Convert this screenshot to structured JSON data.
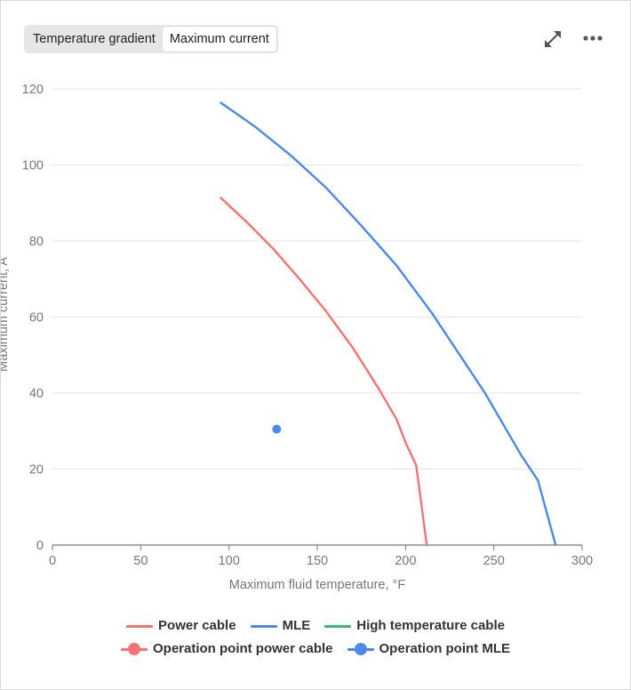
{
  "tabs": [
    {
      "label": "Temperature gradient",
      "active": false
    },
    {
      "label": "Maximum current",
      "active": true
    }
  ],
  "icons": {
    "expand": "expand-arrows-icon",
    "more": "more-dots-icon"
  },
  "chart_data": {
    "type": "line",
    "title": "",
    "xlabel": "Maximum fluid temperature, °F",
    "ylabel": "Maximum current, A",
    "xlim": [
      0,
      300
    ],
    "ylim": [
      0,
      120
    ],
    "xticks": [
      0,
      50,
      100,
      150,
      200,
      250,
      300
    ],
    "yticks": [
      0,
      20,
      40,
      60,
      80,
      100,
      120
    ],
    "grid": "horizontal",
    "legend_position": "bottom",
    "series": [
      {
        "name": "Power cable",
        "kind": "line",
        "color": "#f77272",
        "x": [
          95,
          110,
          125,
          140,
          155,
          170,
          185,
          195,
          200,
          206,
          212
        ],
        "y": [
          91.5,
          85,
          78,
          70,
          61.5,
          52,
          41,
          33,
          27,
          21,
          0
        ]
      },
      {
        "name": "MLE",
        "kind": "line",
        "color": "#4a8ae8",
        "x": [
          95,
          115,
          135,
          155,
          175,
          195,
          215,
          235,
          245,
          255,
          265,
          275,
          285
        ],
        "y": [
          116.5,
          110,
          102.5,
          94,
          84,
          73.5,
          61,
          47,
          40,
          32,
          24,
          17,
          0
        ]
      },
      {
        "name": "High temperature cable",
        "kind": "line",
        "color": "#3cb878",
        "x": [],
        "y": []
      },
      {
        "name": "Operation point power cable",
        "kind": "point",
        "color": "#f77272",
        "x": [],
        "y": []
      },
      {
        "name": "Operation point MLE",
        "kind": "point",
        "color": "#4a8ae8",
        "x": [
          127
        ],
        "y": [
          30.5
        ]
      }
    ]
  }
}
